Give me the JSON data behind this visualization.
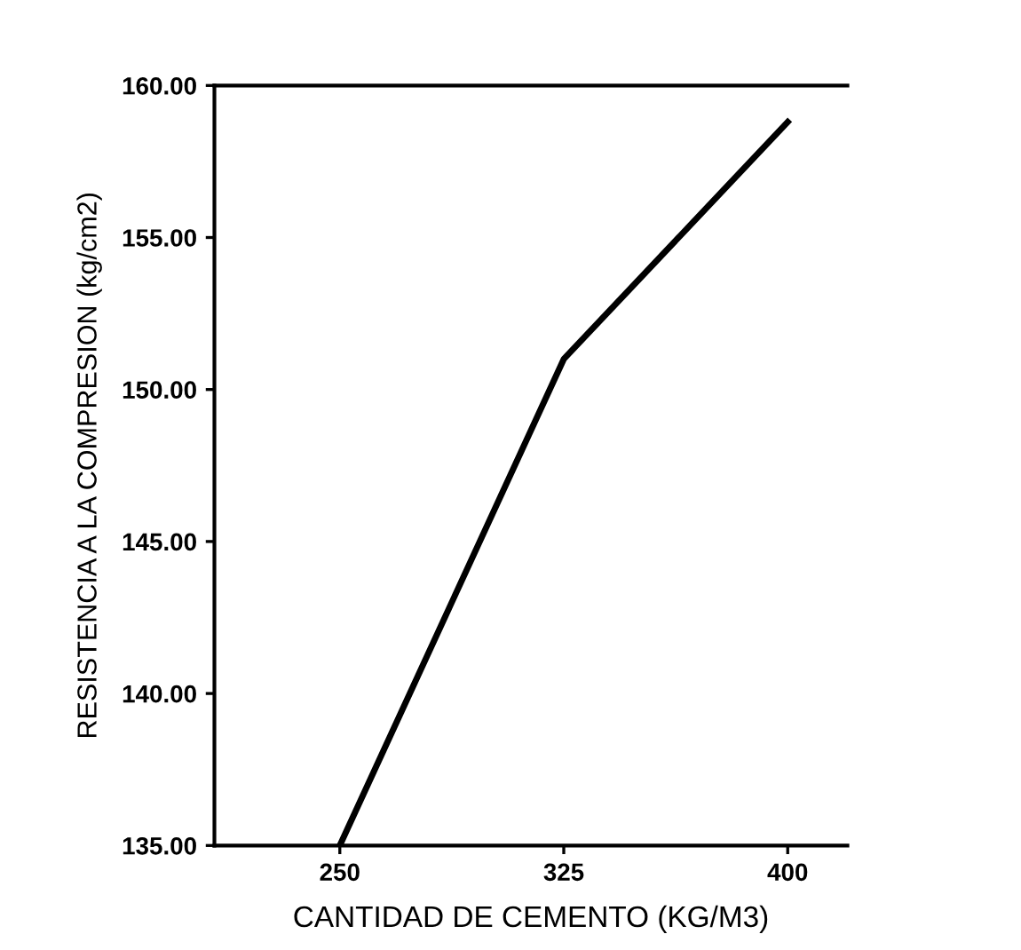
{
  "chart_data": {
    "type": "line",
    "xlabel": "CANTIDAD DE CEMENTO (KG/M3)",
    "ylabel": "RESISTENCIA A LA COMPRESION (kg/cm2)",
    "x": [
      250,
      325,
      400
    ],
    "series": [
      {
        "color": "#000000",
        "values": [
          135,
          151,
          158.8
        ]
      }
    ],
    "xlim": [
      208,
      420
    ],
    "xticks": [
      250,
      325,
      400
    ],
    "ylim": [
      135,
      160
    ],
    "yticks": [
      {
        "value": 135,
        "label": "135.00"
      },
      {
        "value": 140,
        "label": "140.00"
      },
      {
        "value": 145,
        "label": "145.00"
      },
      {
        "value": 150,
        "label": "150.00"
      },
      {
        "value": 155,
        "label": "155.00"
      },
      {
        "value": 160,
        "label": "160.00"
      }
    ],
    "grid": false,
    "marker": "none",
    "line_style": "solid"
  }
}
